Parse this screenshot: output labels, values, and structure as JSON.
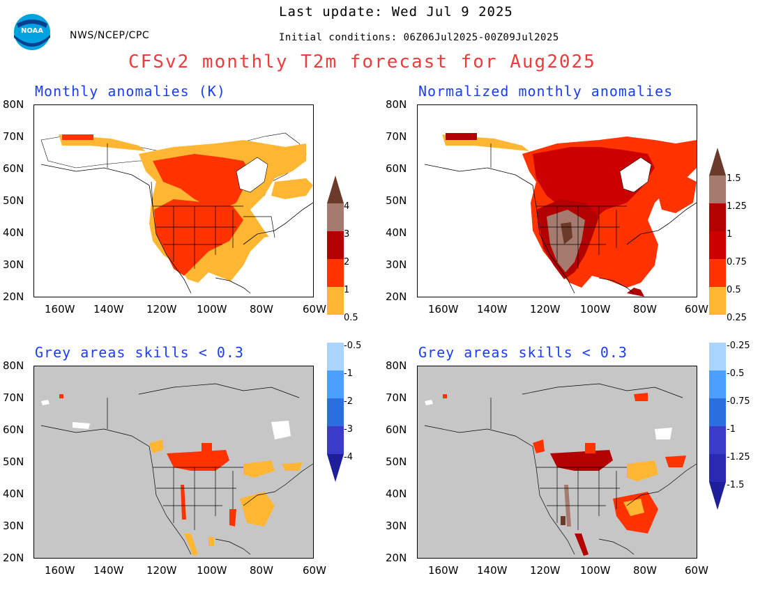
{
  "header": {
    "agency": "NWS/NCEP/CPC",
    "last_update": "Last update: Wed Jul 9 2025",
    "initial_conditions": "Initial conditions: 06Z06Jul2025-00Z09Jul2025",
    "title": "CFSv2 monthly T2m forecast for Aug2025",
    "logo_text": "NOAA"
  },
  "axes": {
    "lat_labels": [
      "80N",
      "70N",
      "60N",
      "50N",
      "40N",
      "30N",
      "20N"
    ],
    "lon_labels": [
      "160W",
      "140W",
      "120W",
      "100W",
      "80W",
      "60W"
    ]
  },
  "panels": [
    {
      "id": "top-left",
      "title": "Monthly anomalies (K)"
    },
    {
      "id": "top-right",
      "title": "Normalized monthly anomalies"
    },
    {
      "id": "bottom-left",
      "title": "Grey areas skills < 0.3"
    },
    {
      "id": "bottom-right",
      "title": "Grey areas skills < 0.3"
    }
  ],
  "colorbars": {
    "left": {
      "labels": [
        "4",
        "3",
        "2",
        "1",
        "0.5",
        "-0.5",
        "-1",
        "-2",
        "-3",
        "-4"
      ],
      "colors": [
        "#6b3a2a",
        "#a67b6f",
        "#b30000",
        "#ff3300",
        "#ffb733",
        "#ffffff",
        "#a8d4ff",
        "#4d9fff",
        "#2b6fdf",
        "#3b3bc9",
        "#1e1e9a"
      ]
    },
    "right": {
      "labels": [
        "1.5",
        "1.25",
        "1",
        "0.75",
        "0.5",
        "0.25",
        "-0.25",
        "-0.5",
        "-0.75",
        "-1",
        "-1.25",
        "-1.5"
      ],
      "colors": [
        "#6b3a2a",
        "#a67b6f",
        "#b30000",
        "#cc0000",
        "#ff3300",
        "#ffb733",
        "#ffffff",
        "#a8d4ff",
        "#4d9fff",
        "#2b6fdf",
        "#3b3bc9",
        "#2a2ab0",
        "#1e1e9a"
      ]
    }
  },
  "colors": {
    "title_red": "#ee3b3b",
    "panel_title_blue": "#1a3cff",
    "skill_grey": "#c6c6c6",
    "brown": "#6b3a2a",
    "light_brown": "#a67b6f",
    "dark_red": "#b30000",
    "red": "#ff3300",
    "orange": "#ffb733"
  }
}
